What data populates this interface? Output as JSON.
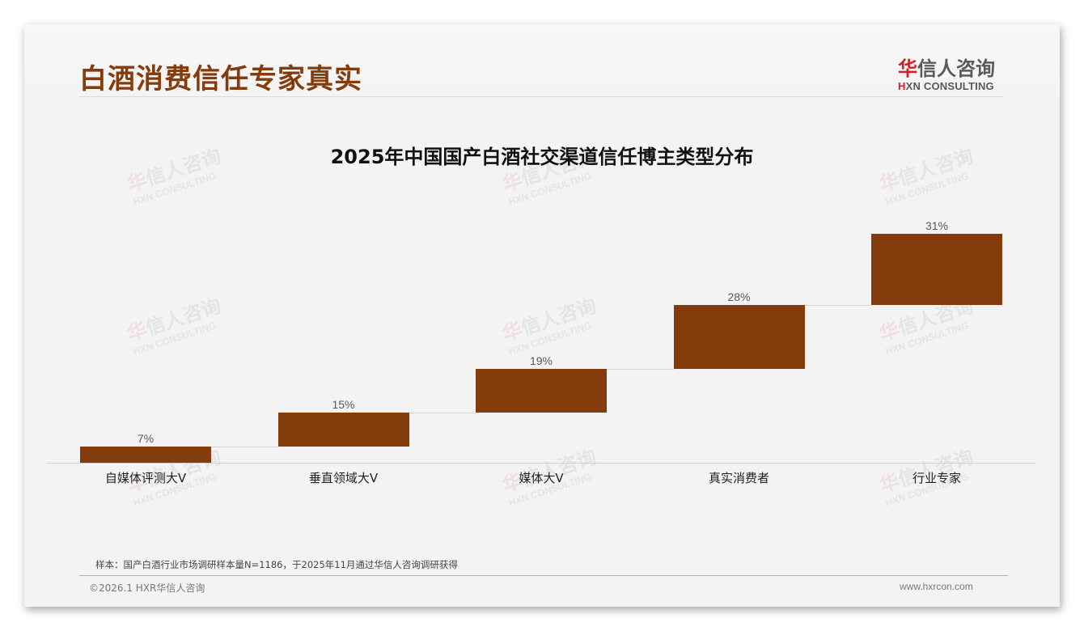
{
  "header": {
    "page_title": "白酒消费信任专家真实",
    "logo": {
      "cn_accent": "华",
      "cn_rest": "信人咨询",
      "en_accent": "H",
      "en_rest": "XN CONSULTING"
    }
  },
  "watermark": {
    "cn_accent": "华",
    "cn_rest": "信人咨询",
    "en": "HXN CONSULTING"
  },
  "colors": {
    "bar": "#843c0c",
    "title": "#843c0c",
    "logo_accent": "#d0202a"
  },
  "chart_data": {
    "type": "bar",
    "subtype": "waterfall",
    "title": "2025年中国国产白酒社交渠道信任博主类型分布",
    "categories": [
      "自媒体评测大V",
      "垂直领域大V",
      "媒体大V",
      "真实消费者",
      "行业专家"
    ],
    "values": [
      7,
      15,
      19,
      28,
      31
    ],
    "value_labels": [
      "7%",
      "15%",
      "19%",
      "28%",
      "31%"
    ],
    "cumulative_start": [
      0,
      7,
      22,
      41,
      69
    ],
    "cumulative_end": [
      7,
      22,
      41,
      69,
      100
    ],
    "unit": "%",
    "xlabel": "",
    "ylabel": "",
    "ylim": [
      0,
      100
    ],
    "grid": false,
    "legend": "none",
    "connectors": true
  },
  "footer": {
    "source_note": "样本：国产白酒行业市场调研样本量N=1186，于2025年11月通过华信人咨询调研获得",
    "copyright": "©2026.1 HXR华信人咨询",
    "website": "www.hxrcon.com"
  }
}
